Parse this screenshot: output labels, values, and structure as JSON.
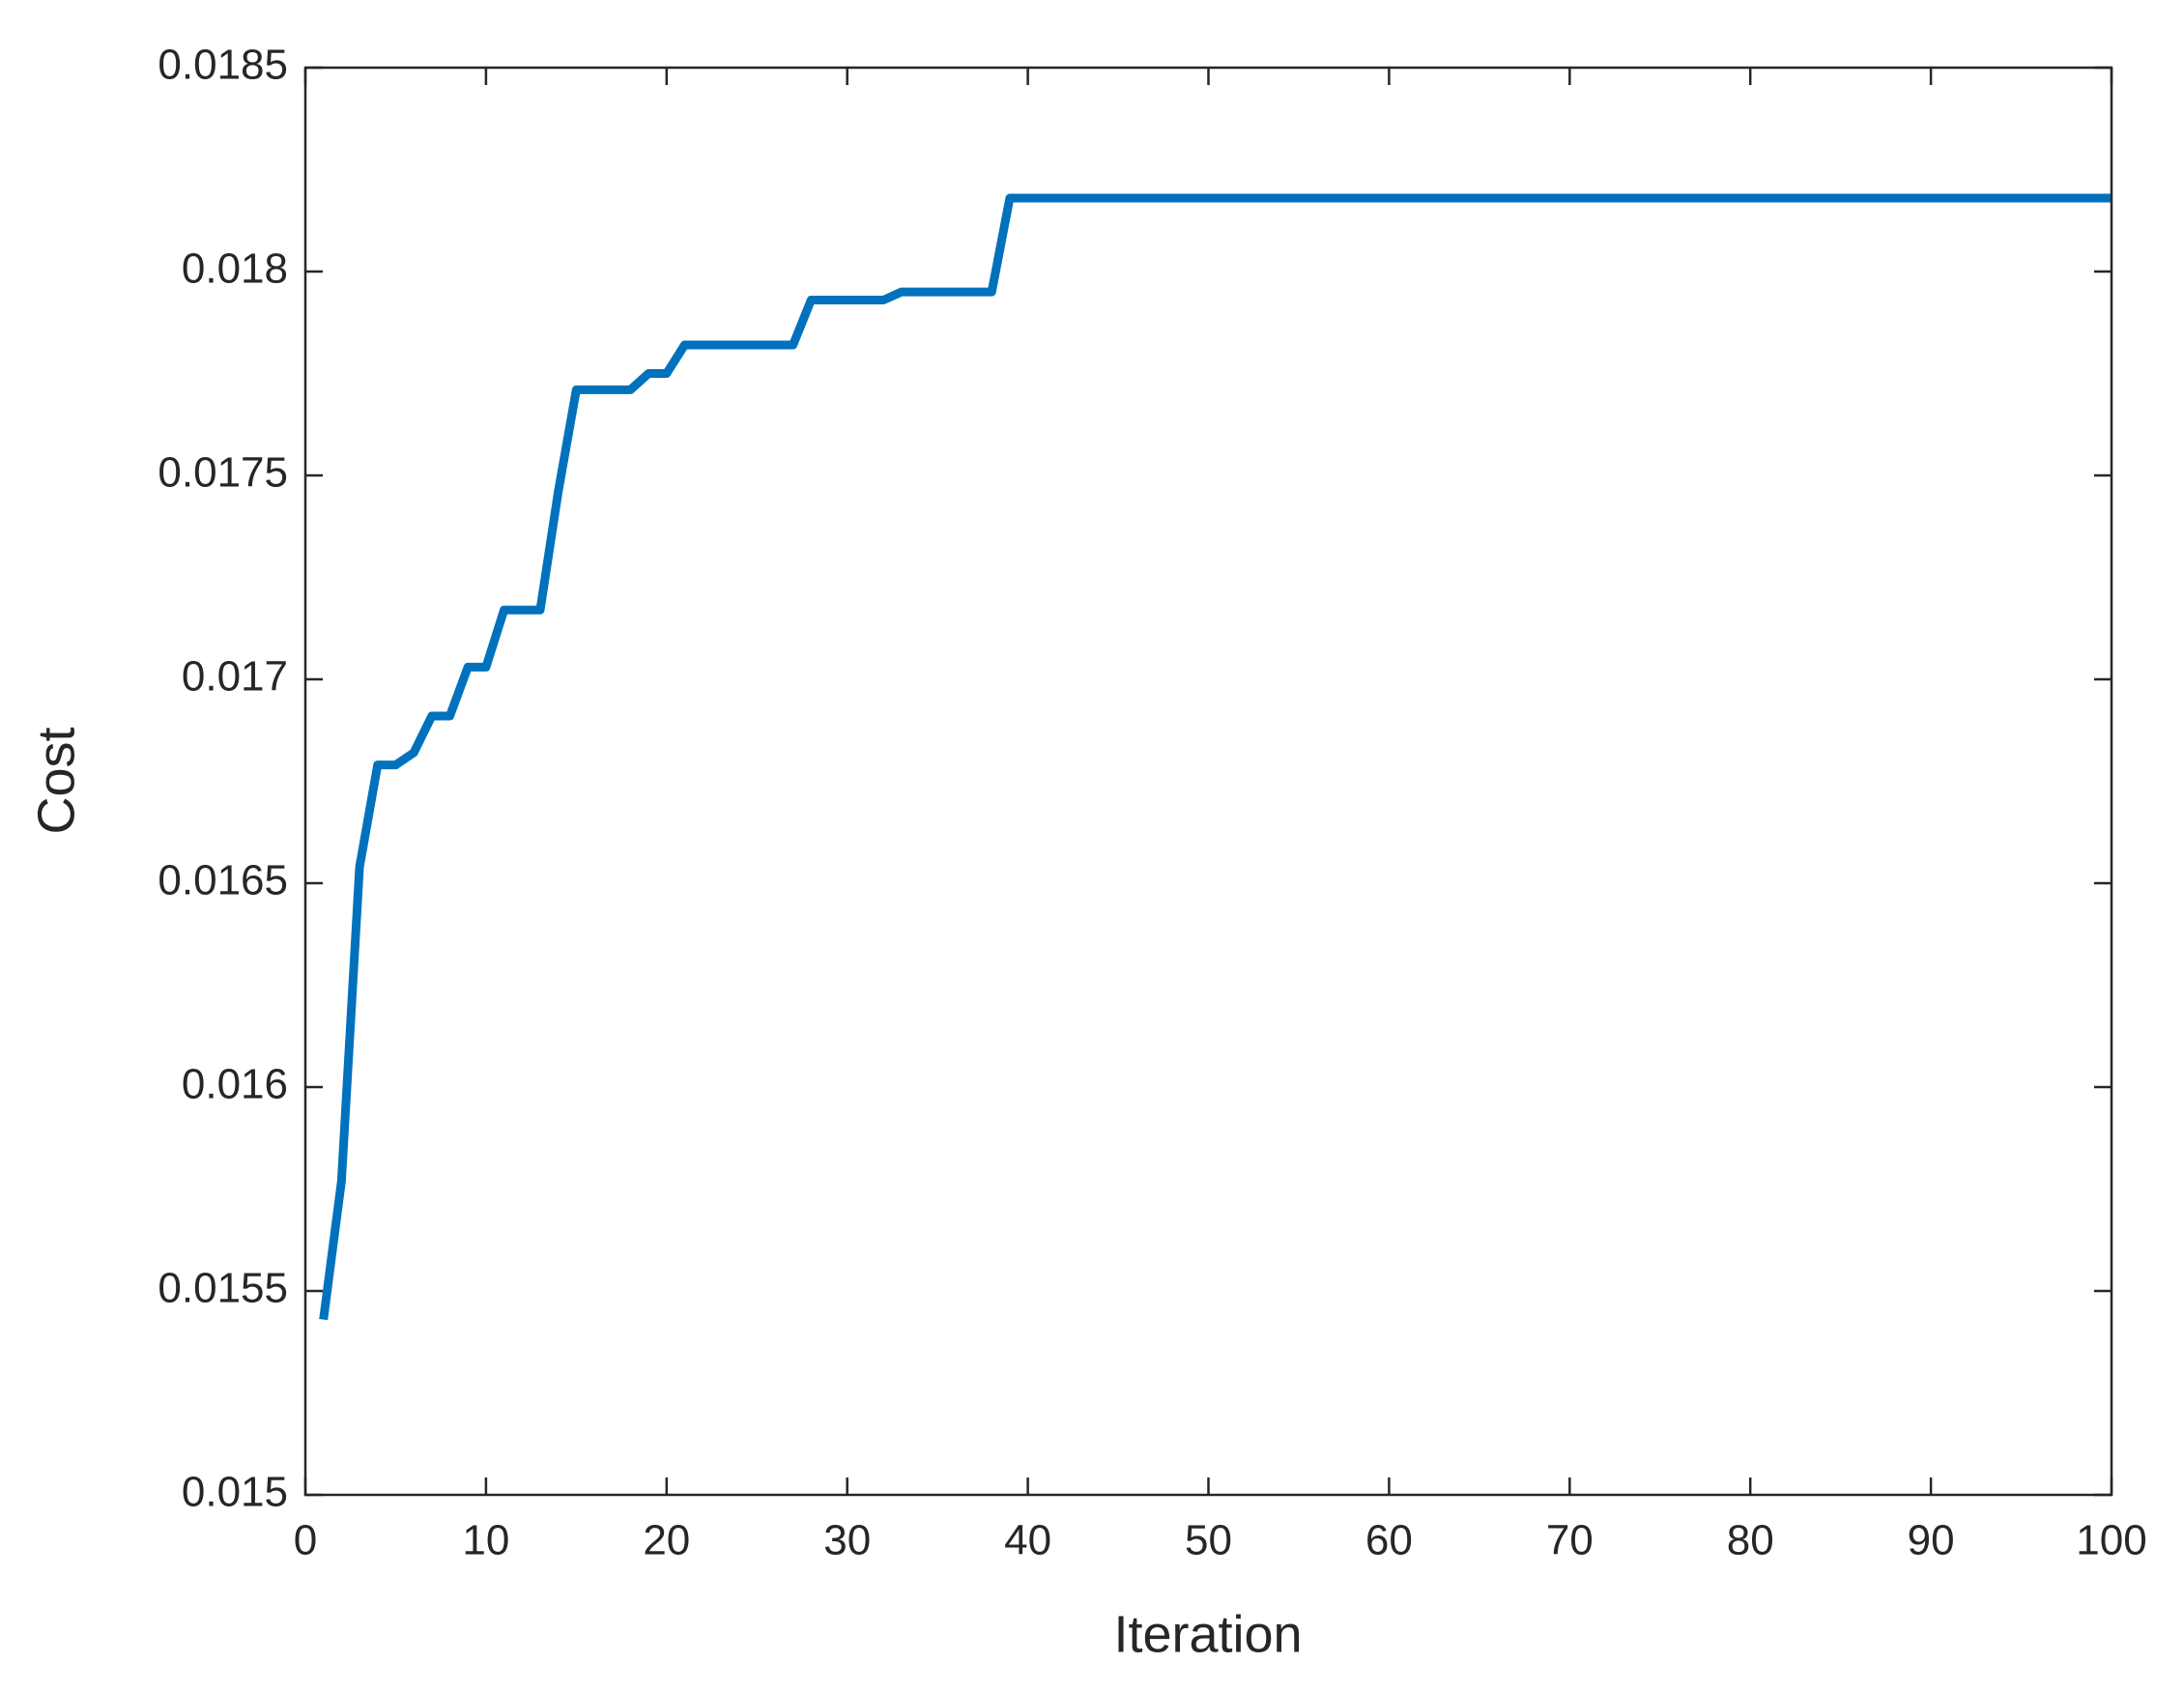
{
  "chart_data": {
    "type": "line",
    "x_label": "Iteration",
    "y_label": "Cost",
    "x": [
      1,
      2,
      3,
      4,
      5,
      6,
      7,
      8,
      9,
      10,
      11,
      12,
      13,
      14,
      15,
      16,
      17,
      18,
      19,
      20,
      21,
      22,
      23,
      24,
      25,
      26,
      27,
      28,
      29,
      30,
      31,
      32,
      33,
      34,
      35,
      36,
      37,
      38,
      39,
      40,
      41,
      42,
      43,
      44,
      45,
      46,
      47,
      48,
      49,
      50,
      51,
      52,
      53,
      54,
      55,
      56,
      57,
      58,
      59,
      60,
      61,
      62,
      63,
      64,
      65,
      66,
      67,
      68,
      69,
      70,
      71,
      72,
      73,
      74,
      75,
      76,
      77,
      78,
      79,
      80,
      81,
      82,
      83,
      84,
      85,
      86,
      87,
      88,
      89,
      90,
      91,
      92,
      93,
      94,
      95,
      96,
      97,
      98,
      99,
      100
    ],
    "series": [
      {
        "color": "#0072bd",
        "values": [
          0.01543,
          0.01577,
          0.01654,
          0.01679,
          0.01679,
          0.01682,
          0.01691,
          0.01691,
          0.01703,
          0.01703,
          0.01717,
          0.01717,
          0.01717,
          0.01746,
          0.01771,
          0.01771,
          0.01771,
          0.01771,
          0.01775,
          0.01775,
          0.01782,
          0.01782,
          0.01782,
          0.01782,
          0.01782,
          0.01782,
          0.01782,
          0.01793,
          0.01793,
          0.01793,
          0.01793,
          0.01793,
          0.01795,
          0.01795,
          0.01795,
          0.01795,
          0.01795,
          0.01795,
          0.01818,
          0.01818,
          0.01818,
          0.01818,
          0.01818,
          0.01818,
          0.01818,
          0.01818,
          0.01818,
          0.01818,
          0.01818,
          0.01818,
          0.01818,
          0.01818,
          0.01818,
          0.01818,
          0.01818,
          0.01818,
          0.01818,
          0.01818,
          0.01818,
          0.01818,
          0.01818,
          0.01818,
          0.01818,
          0.01818,
          0.01818,
          0.01818,
          0.01818,
          0.01818,
          0.01818,
          0.01818,
          0.01818,
          0.01818,
          0.01818,
          0.01818,
          0.01818,
          0.01818,
          0.01818,
          0.01818,
          0.01818,
          0.01818,
          0.01818,
          0.01818,
          0.01818,
          0.01818,
          0.01818,
          0.01818,
          0.01818,
          0.01818,
          0.01818,
          0.01818,
          0.01818,
          0.01818,
          0.01818,
          0.01818,
          0.01818,
          0.01818,
          0.01818,
          0.01818,
          0.01818,
          0.01818
        ]
      }
    ],
    "xlim": [
      0,
      100
    ],
    "xticks": [
      0,
      10,
      20,
      30,
      40,
      50,
      60,
      70,
      80,
      90,
      100
    ],
    "ylim": [
      0.015,
      0.0185
    ],
    "yticks": [
      0.015,
      0.0155,
      0.016,
      0.0165,
      0.017,
      0.0175,
      0.018,
      0.0185
    ],
    "grid": false
  }
}
